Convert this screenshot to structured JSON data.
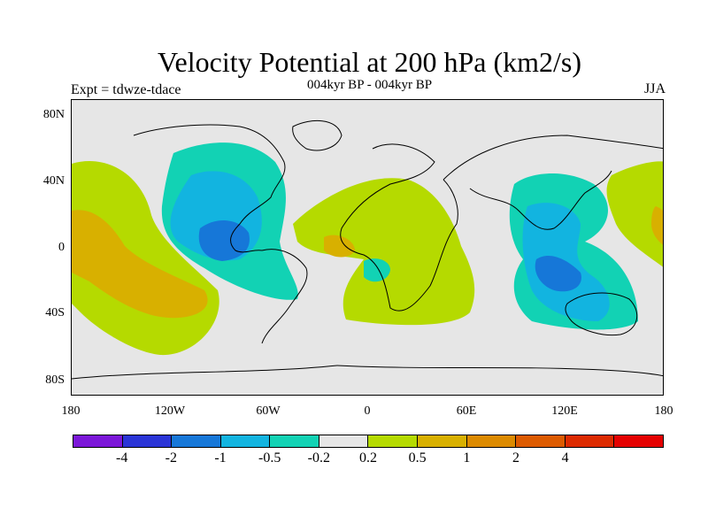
{
  "title": "Velocity Potential at 200 hPa (km2/s)",
  "subtitle": "004kyr BP - 004kyr BP",
  "left_label": "Expt = tdwze-tdace",
  "right_label": "JJA",
  "y_ticks": [
    "80N",
    "40N",
    "0",
    "40S",
    "80S"
  ],
  "x_ticks": [
    "180",
    "120W",
    "60W",
    "0",
    "60E",
    "120E",
    "180"
  ],
  "colorbar": {
    "colors": [
      "#7b16d8",
      "#2a34d6",
      "#1677d8",
      "#12b4e0",
      "#12d2b4",
      "#e6e6e6",
      "#b5da00",
      "#d8b000",
      "#dc8a00",
      "#dc5a00",
      "#dc2a00",
      "#e40000"
    ],
    "labels": [
      "-4",
      "-2",
      "-1",
      "-0.5",
      "-0.2",
      "0.2",
      "0.5",
      "1",
      "2",
      "4"
    ]
  },
  "colors": {
    "background": "#e6e6e6",
    "pos_weak": "#b5da00",
    "pos_mod": "#d8b000",
    "neg_weak": "#12d2b4",
    "neg_mod": "#12b4e0",
    "neg_strong": "#1677d8"
  }
}
